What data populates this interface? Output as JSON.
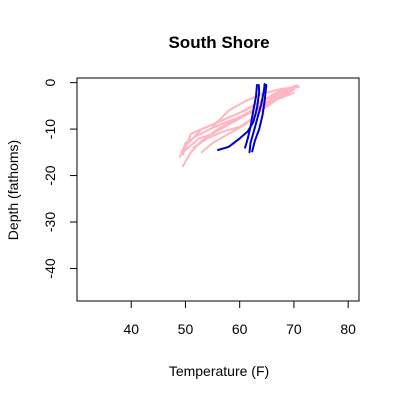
{
  "chart_data": {
    "type": "line",
    "title": "South Shore",
    "xlabel": "Temperature (F)",
    "ylabel": "Depth (fathoms)",
    "xlim": [
      30,
      82
    ],
    "ylim": [
      -47,
      1
    ],
    "xticks": [
      40,
      50,
      60,
      70,
      80
    ],
    "yticks": [
      0,
      -10,
      -20,
      -30,
      -40
    ],
    "grid": false,
    "legend": "none",
    "series": [
      {
        "color": "#FFB6C1",
        "points": [
          [
            49.5,
            -15.5
          ],
          [
            51,
            -11
          ],
          [
            55,
            -9
          ],
          [
            60,
            -6.5
          ],
          [
            64,
            -4
          ],
          [
            67,
            -2
          ],
          [
            70,
            -0.8
          ]
        ]
      },
      {
        "color": "#FFB6C1",
        "points": [
          [
            50.5,
            -13
          ],
          [
            53,
            -10
          ],
          [
            57,
            -8
          ],
          [
            61,
            -6
          ],
          [
            65,
            -3.5
          ],
          [
            69,
            -1.5
          ],
          [
            71,
            -0.8
          ]
        ]
      },
      {
        "color": "#FFB6C1",
        "points": [
          [
            49.5,
            -18
          ],
          [
            51,
            -15
          ],
          [
            53,
            -12.5
          ],
          [
            56,
            -10
          ],
          [
            59,
            -8
          ],
          [
            63,
            -5.5
          ],
          [
            67,
            -3
          ],
          [
            70,
            -1
          ]
        ]
      },
      {
        "color": "#FFB6C1",
        "points": [
          [
            50,
            -14.5
          ],
          [
            52.5,
            -12
          ],
          [
            55,
            -11
          ],
          [
            58,
            -9
          ],
          [
            62,
            -6.5
          ],
          [
            66,
            -4
          ],
          [
            70,
            -2.2
          ]
        ]
      },
      {
        "color": "#FFB6C1",
        "points": [
          [
            53,
            -15
          ],
          [
            55,
            -13
          ],
          [
            58,
            -11
          ],
          [
            61,
            -9
          ],
          [
            64,
            -6
          ],
          [
            67,
            -3.5
          ],
          [
            70,
            -1.5
          ]
        ]
      },
      {
        "color": "#FFB6C1",
        "points": [
          [
            49,
            -16
          ],
          [
            50,
            -13
          ],
          [
            52,
            -11.5
          ],
          [
            54.5,
            -10
          ],
          [
            57.5,
            -8.5
          ],
          [
            61,
            -7
          ],
          [
            63,
            -5.5
          ],
          [
            66,
            -3.5
          ],
          [
            68,
            -2
          ],
          [
            70.5,
            -1
          ]
        ]
      },
      {
        "color": "#FFB6C1",
        "points": [
          [
            51.5,
            -14
          ],
          [
            54,
            -12
          ],
          [
            57,
            -10.5
          ],
          [
            60,
            -9.5
          ],
          [
            62,
            -8
          ],
          [
            65,
            -5
          ],
          [
            68,
            -2.5
          ],
          [
            70.5,
            -0.5
          ]
        ]
      },
      {
        "color": "#FFB6C1",
        "points": [
          [
            55,
            -9.5
          ],
          [
            58,
            -6
          ],
          [
            61,
            -4
          ],
          [
            64,
            -2.5
          ],
          [
            67,
            -1.5
          ],
          [
            70,
            -1
          ]
        ]
      },
      {
        "color": "#0000CD",
        "points": [
          [
            56,
            -14.5
          ],
          [
            58,
            -13.8
          ],
          [
            60,
            -12
          ],
          [
            61.5,
            -10.5
          ],
          [
            62.5,
            -8.5
          ],
          [
            63.2,
            -5.5
          ],
          [
            63.6,
            -2
          ],
          [
            63.5,
            -0.5
          ]
        ]
      },
      {
        "color": "#0000CD",
        "points": [
          [
            61,
            -14
          ],
          [
            61.5,
            -12
          ],
          [
            62,
            -9.5
          ],
          [
            62.5,
            -6
          ],
          [
            63,
            -3
          ],
          [
            63.2,
            -0.5
          ]
        ]
      },
      {
        "color": "#0000CD",
        "points": [
          [
            61.8,
            -15
          ],
          [
            62,
            -13
          ],
          [
            62.6,
            -10.5
          ],
          [
            63.3,
            -7.5
          ],
          [
            64,
            -4.5
          ],
          [
            64.5,
            -1.5
          ],
          [
            64.6,
            -0.3
          ]
        ]
      },
      {
        "color": "#0000CD",
        "points": [
          [
            62.3,
            -14.8
          ],
          [
            62.8,
            -12.5
          ],
          [
            63.6,
            -10
          ],
          [
            64.2,
            -7
          ],
          [
            64.6,
            -4
          ],
          [
            64.9,
            -0.5
          ]
        ]
      }
    ]
  }
}
